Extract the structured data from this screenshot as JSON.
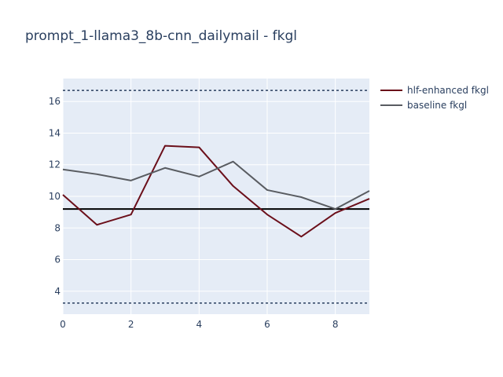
{
  "chart_data": {
    "type": "line",
    "title": "prompt_1-llama3_8b-cnn_dailymail - fkgl",
    "xlabel": "",
    "ylabel": "",
    "xlim": [
      0,
      9
    ],
    "ylim": [
      2.55,
      17.45
    ],
    "x_ticks": [
      0,
      2,
      4,
      6,
      8
    ],
    "y_ticks": [
      4,
      6,
      8,
      10,
      12,
      14,
      16
    ],
    "x_tick_labels": [
      "0",
      "2",
      "4",
      "6",
      "8"
    ],
    "y_tick_labels": [
      "4",
      "6",
      "8",
      "10",
      "12",
      "14",
      "16"
    ],
    "grid": true,
    "legend_position": "top-right",
    "x": [
      0,
      1,
      2,
      3,
      4,
      5,
      6,
      7,
      8,
      9
    ],
    "series": [
      {
        "name": "hlf-enhanced fkgl",
        "color": "#6b0f1a",
        "values": [
          10.1,
          8.2,
          8.85,
          13.2,
          13.1,
          10.65,
          8.85,
          7.45,
          8.95,
          9.85
        ]
      },
      {
        "name": "baseline fkgl",
        "color": "#595c61",
        "values": [
          11.7,
          11.4,
          11.0,
          11.8,
          11.25,
          12.2,
          10.4,
          9.95,
          9.2,
          10.35
        ]
      }
    ],
    "reference_lines": [
      {
        "y": 9.2,
        "style": "solid",
        "color": "#000000"
      },
      {
        "y": 16.7,
        "style": "dotted",
        "color": "#2a3f5f"
      },
      {
        "y": 3.25,
        "style": "dotted",
        "color": "#2a3f5f"
      }
    ]
  }
}
